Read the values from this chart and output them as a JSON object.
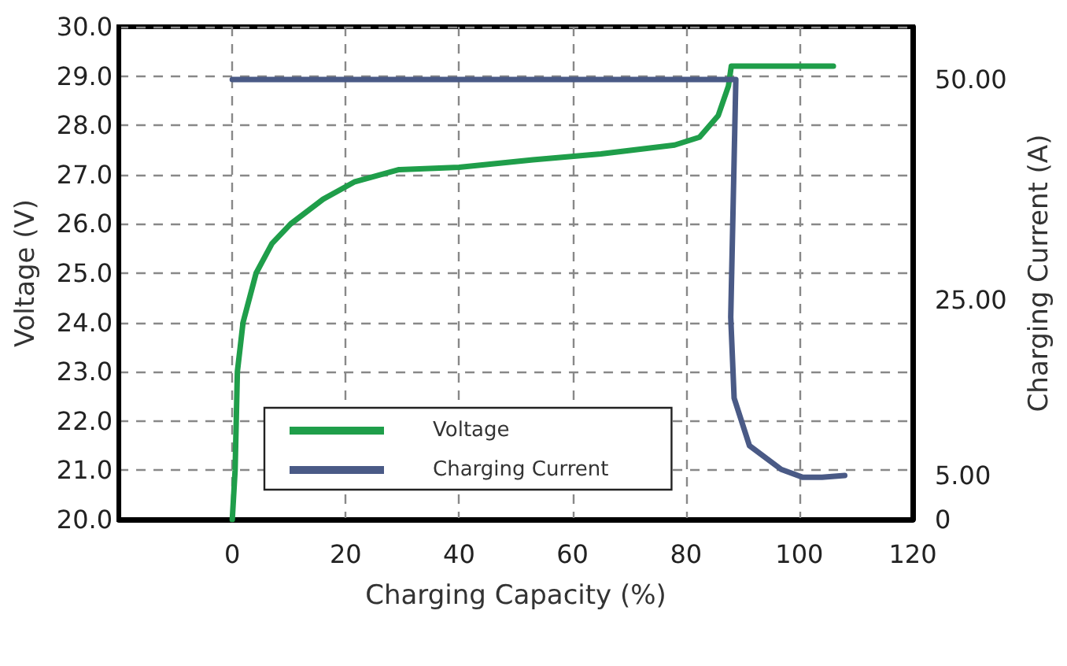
{
  "chart_data": {
    "type": "line",
    "xlabel": "Charging Capacity (%)",
    "ylabel": "Voltage (V)",
    "y2label": "Charging Current (A)",
    "xlim": [
      -20,
      120
    ],
    "xticks": [
      0,
      20,
      40,
      60,
      80,
      100,
      120
    ],
    "ylim": [
      20,
      30
    ],
    "yticks": [
      {
        "value": 20,
        "label": "20.0"
      },
      {
        "value": 21,
        "label": "21.0"
      },
      {
        "value": 22,
        "label": "22.0"
      },
      {
        "value": 23,
        "label": "23.0"
      },
      {
        "value": 24,
        "label": "24.0"
      },
      {
        "value": 25,
        "label": "25.0"
      },
      {
        "value": 26,
        "label": "26.0"
      },
      {
        "value": 27,
        "label": "27.0"
      },
      {
        "value": 28,
        "label": "28.0"
      },
      {
        "value": 29,
        "label": "29.0"
      },
      {
        "value": 30,
        "label": "30.0"
      }
    ],
    "y2lim": [
      0,
      56
    ],
    "y2ticks": [
      0,
      {
        "value": 5,
        "label": "5.00"
      },
      {
        "value": 25,
        "label": "25.00"
      },
      {
        "value": 50,
        "label": "50.00"
      }
    ],
    "grid": true,
    "legend": "bottom",
    "marker": "none",
    "line_style": "solid",
    "series": [
      {
        "name": "Voltage",
        "color": "#1f9e4a",
        "x": [
          0,
          0.5,
          0.9,
          1.9,
          4.2,
          7,
          10.3,
          16,
          21.5,
          29.3,
          40,
          53,
          65,
          78,
          82.4,
          85.7,
          87.5,
          88,
          95,
          106
        ],
        "values": [
          20,
          21,
          23,
          24,
          25,
          25.6,
          26,
          26.5,
          26.85,
          27.1,
          27.15,
          27.3,
          27.42,
          27.6,
          27.76,
          28.2,
          28.8,
          29.2,
          29.2,
          29.2
        ]
      },
      {
        "name": "Charging Current",
        "color": "#4a5a86",
        "axis": "y2",
        "x": [
          0,
          40,
          88.8,
          88.5,
          87.9,
          88.5,
          91.2,
          96.8,
          100.6,
          104,
          108
        ],
        "values": [
          50,
          50,
          50,
          41,
          23,
          13.8,
          8.4,
          5.7,
          4.8,
          4.8,
          5
        ]
      }
    ]
  }
}
